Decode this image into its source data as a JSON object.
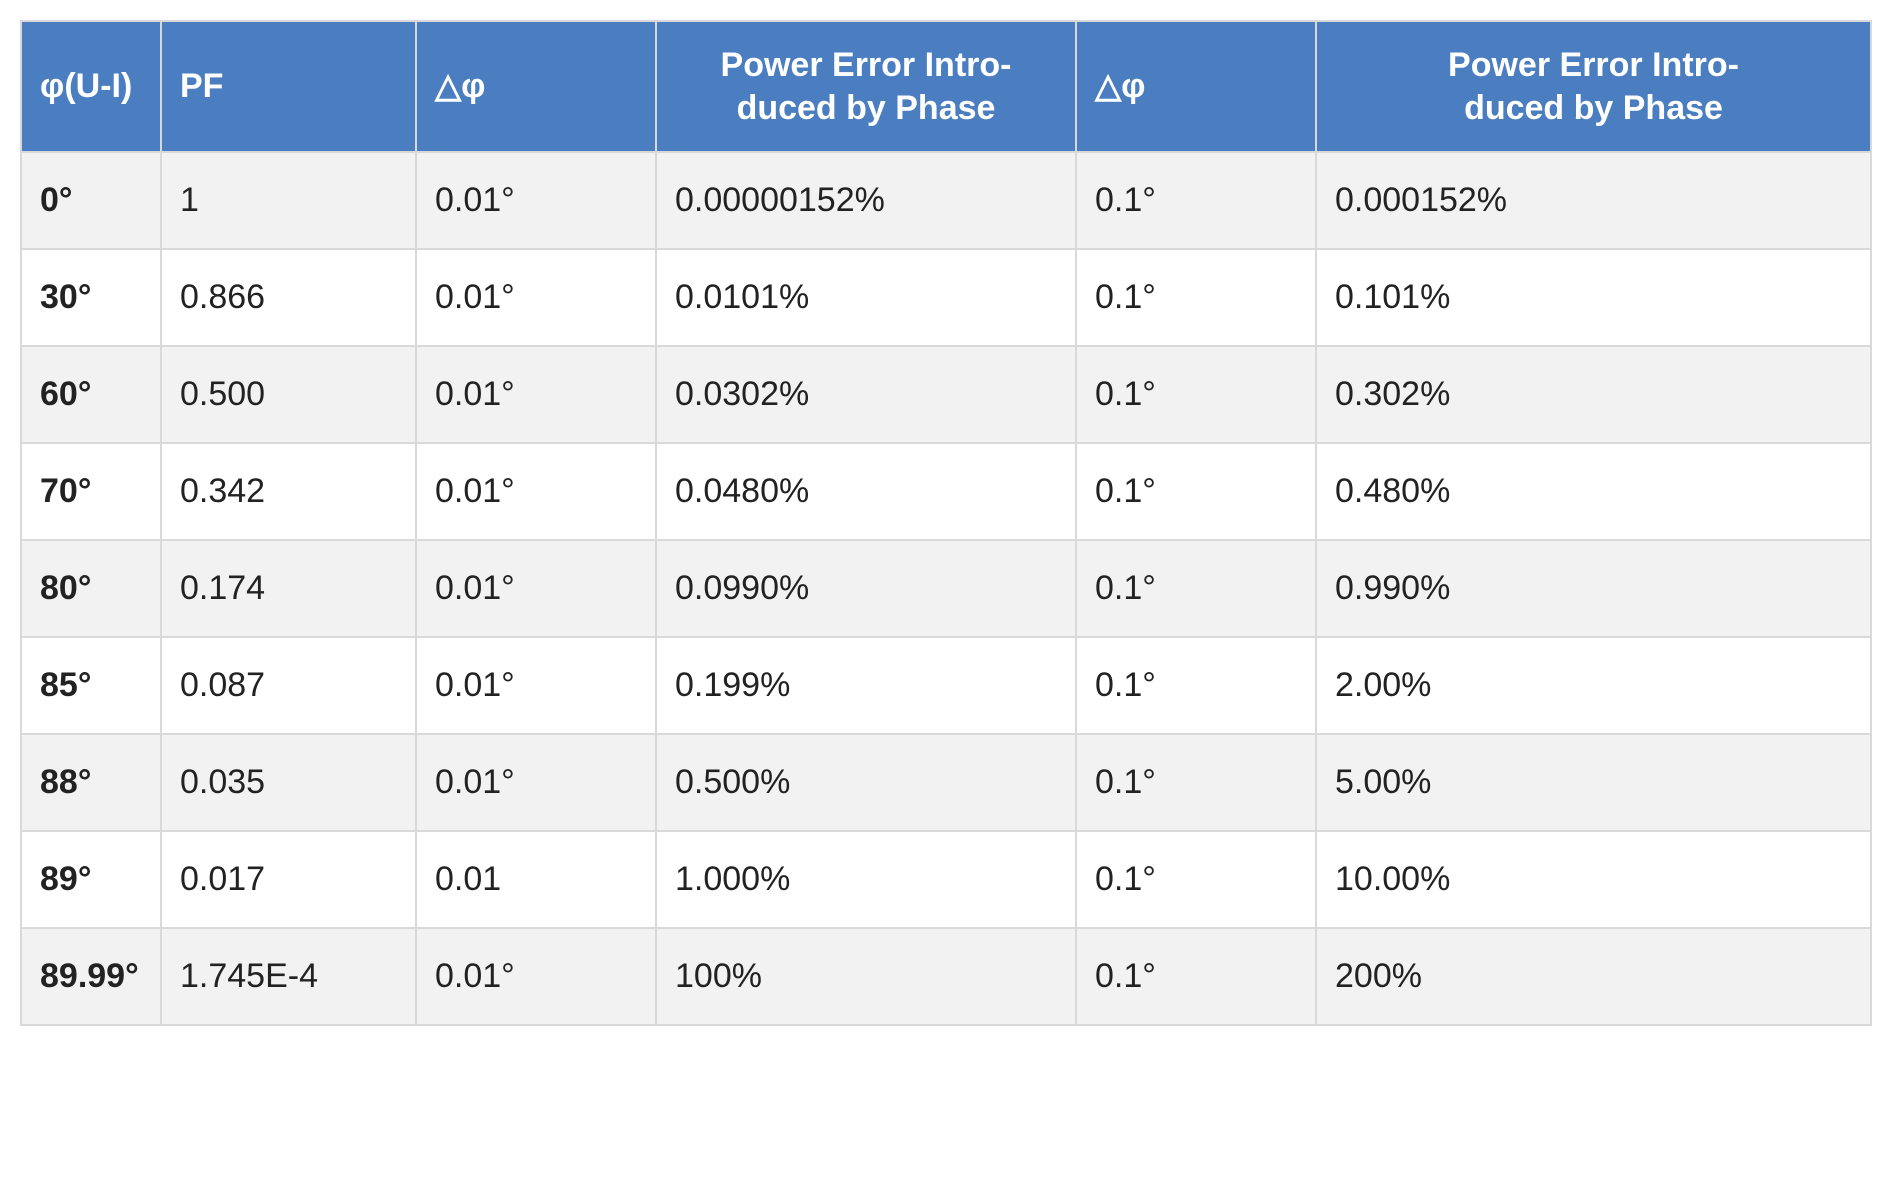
{
  "table": {
    "header_bg": "#4a7ec0",
    "header_fg": "#ffffff",
    "row_odd_bg": "#f2f2f2",
    "row_even_bg": "#ffffff",
    "border_color": "#d9d9d9",
    "cell_font_size": 34,
    "columns": [
      {
        "label": "φ(U-I)",
        "align": "left"
      },
      {
        "label": "PF",
        "align": "left"
      },
      {
        "label": "△φ",
        "align": "left"
      },
      {
        "label": "Power Error Intro-\nduced by Phase",
        "align": "center"
      },
      {
        "label": "△φ",
        "align": "left"
      },
      {
        "label": "Power Error Intro-\nduced by Phase",
        "align": "center"
      }
    ],
    "rows": [
      [
        "0°",
        "1",
        "0.01°",
        "0.00000152%",
        "0.1°",
        "0.000152%"
      ],
      [
        "30°",
        "0.866",
        "0.01°",
        "0.0101%",
        "0.1°",
        "0.101%"
      ],
      [
        "60°",
        "0.500",
        "0.01°",
        "0.0302%",
        "0.1°",
        "0.302%"
      ],
      [
        "70°",
        "0.342",
        "0.01°",
        "0.0480%",
        "0.1°",
        "0.480%"
      ],
      [
        "80°",
        "0.174",
        "0.01°",
        "0.0990%",
        "0.1°",
        "0.990%"
      ],
      [
        "85°",
        "0.087",
        "0.01°",
        "0.199%",
        "0.1°",
        "2.00%"
      ],
      [
        "88°",
        "0.035",
        "0.01°",
        "0.500%",
        "0.1°",
        "5.00%"
      ],
      [
        "89°",
        "0.017",
        "0.01",
        "1.000%",
        "0.1°",
        "10.00%"
      ],
      [
        "89.99°",
        "1.745E-4",
        "0.01°",
        "100%",
        "0.1°",
        "200%"
      ]
    ]
  }
}
